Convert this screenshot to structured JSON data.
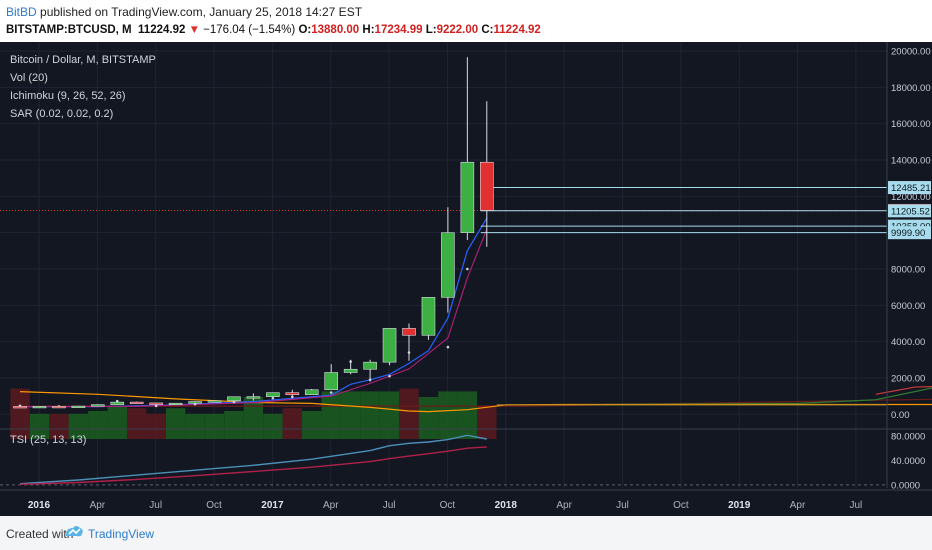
{
  "header": {
    "author": "BitBD",
    "published_text": "published on TradingView.com, January 25, 2018 14:27 EST",
    "symbol": "BITSTAMP:BTCUSD, M",
    "last": "11224.92",
    "change": "−176.04 (−1.54%)",
    "o_label": "O:",
    "o_value": "13880.00",
    "h_label": "H:",
    "h_value": "17234.99",
    "l_label": "L:",
    "l_value": "9222.00",
    "c_label": "C:",
    "c_value": "11224.92"
  },
  "legend": {
    "title": "Bitcoin / Dollar, M, BITSTAMP",
    "vol": "Vol (20)",
    "ichimoku": "Ichimoku (9, 26, 52, 26)",
    "sar": "SAR (0.02, 0.02, 0.2)",
    "tsi": "TSI (25, 13, 13)"
  },
  "footer": {
    "created_with": "Created with",
    "brand": "TradingView"
  },
  "colors": {
    "background": "#131722",
    "up": "#3cb043",
    "down": "#e03030",
    "tenkan": "#2962ff",
    "kijun": "#b0207a",
    "spanA": "#2e7d32",
    "spanB": "#c83a3a",
    "lagging": "#ff9800",
    "tsi": "#4a90b8",
    "tsi_signal": "#b0204a"
  },
  "chart_data": [
    {
      "type": "candlestick",
      "title": "Bitcoin / Dollar, M, BITSTAMP",
      "x_tick_labels": [
        "2016",
        "Apr",
        "Jul",
        "Oct",
        "2017",
        "Apr",
        "Jul",
        "Oct",
        "2018",
        "Apr",
        "Jul",
        "Oct",
        "2019",
        "Apr",
        "Jul"
      ],
      "ylim": [
        -700,
        20500
      ],
      "y_tick_labels": [
        "0.00",
        "2000.00",
        "4000.00",
        "6000.00",
        "8000.00",
        "10000.00",
        "12000.00",
        "14000.00",
        "16000.00",
        "18000.00",
        "20000.00"
      ],
      "price_labels": [
        {
          "value": 12485.21,
          "label": "12485.21",
          "style": "line"
        },
        {
          "value": 11224.92,
          "label": "11224.92",
          "style": "current"
        },
        {
          "value": 11205.52,
          "label": "11205.52",
          "style": "line"
        },
        {
          "value": 10358.0,
          "label": "10358.00",
          "style": "line"
        },
        {
          "value": 9999.9,
          "label": "9999.90",
          "style": "line"
        }
      ],
      "candles": [
        {
          "date": "2016-01",
          "o": 430,
          "h": 460,
          "l": 360,
          "c": 370
        },
        {
          "date": "2016-02",
          "o": 370,
          "h": 440,
          "l": 360,
          "c": 435
        },
        {
          "date": "2016-03",
          "o": 435,
          "h": 440,
          "l": 400,
          "c": 415
        },
        {
          "date": "2016-04",
          "o": 415,
          "h": 470,
          "l": 410,
          "c": 450
        },
        {
          "date": "2016-05",
          "o": 450,
          "h": 550,
          "l": 435,
          "c": 530
        },
        {
          "date": "2016-06",
          "o": 530,
          "h": 770,
          "l": 520,
          "c": 670
        },
        {
          "date": "2016-07",
          "o": 670,
          "h": 700,
          "l": 600,
          "c": 625
        },
        {
          "date": "2016-08",
          "o": 625,
          "h": 630,
          "l": 470,
          "c": 575
        },
        {
          "date": "2016-09",
          "o": 575,
          "h": 615,
          "l": 570,
          "c": 610
        },
        {
          "date": "2016-10",
          "o": 610,
          "h": 720,
          "l": 600,
          "c": 700
        },
        {
          "date": "2016-11",
          "o": 700,
          "h": 760,
          "l": 680,
          "c": 745
        },
        {
          "date": "2016-12",
          "o": 745,
          "h": 975,
          "l": 740,
          "c": 965
        },
        {
          "date": "2017-01",
          "o": 965,
          "h": 1150,
          "l": 750,
          "c": 970
        },
        {
          "date": "2017-02",
          "o": 970,
          "h": 1200,
          "l": 920,
          "c": 1190
        },
        {
          "date": "2017-03",
          "o": 1190,
          "h": 1350,
          "l": 890,
          "c": 1080
        },
        {
          "date": "2017-04",
          "o": 1080,
          "h": 1400,
          "l": 1070,
          "c": 1350
        },
        {
          "date": "2017-05",
          "o": 1350,
          "h": 2760,
          "l": 1340,
          "c": 2300
        },
        {
          "date": "2017-06",
          "o": 2300,
          "h": 3000,
          "l": 2200,
          "c": 2480
        },
        {
          "date": "2017-07",
          "o": 2480,
          "h": 3000,
          "l": 1800,
          "c": 2870
        },
        {
          "date": "2017-08",
          "o": 2870,
          "h": 4750,
          "l": 2700,
          "c": 4730
        },
        {
          "date": "2017-09",
          "o": 4730,
          "h": 5000,
          "l": 2950,
          "c": 4350
        },
        {
          "date": "2017-10",
          "o": 4350,
          "h": 6450,
          "l": 4100,
          "c": 6440
        },
        {
          "date": "2017-11",
          "o": 6440,
          "h": 11400,
          "l": 5600,
          "c": 10000
        },
        {
          "date": "2017-12",
          "o": 10000,
          "h": 19666,
          "l": 9600,
          "c": 13880
        },
        {
          "date": "2018-01",
          "o": 13880,
          "h": 17234.99,
          "l": 9222,
          "c": 11224.92
        }
      ]
    },
    {
      "type": "line",
      "title": "TSI (25, 13, 13)",
      "ylim": [
        -5,
        88
      ],
      "y_tick_labels": [
        "0.0000",
        "40.0000",
        "80.0000"
      ],
      "x": [
        "2016-01",
        "2016-04",
        "2016-07",
        "2016-10",
        "2017-01",
        "2017-04",
        "2017-07",
        "2017-08",
        "2017-09",
        "2017-10",
        "2017-11",
        "2017-12",
        "2018-01"
      ],
      "series": [
        {
          "values": [
            2,
            8,
            16,
            24,
            32,
            42,
            56,
            64,
            68,
            70,
            74,
            81,
            75
          ]
        },
        {
          "values": [
            1,
            4,
            9,
            15,
            22,
            29,
            38,
            43,
            47,
            51,
            55,
            60,
            62
          ]
        }
      ]
    }
  ]
}
